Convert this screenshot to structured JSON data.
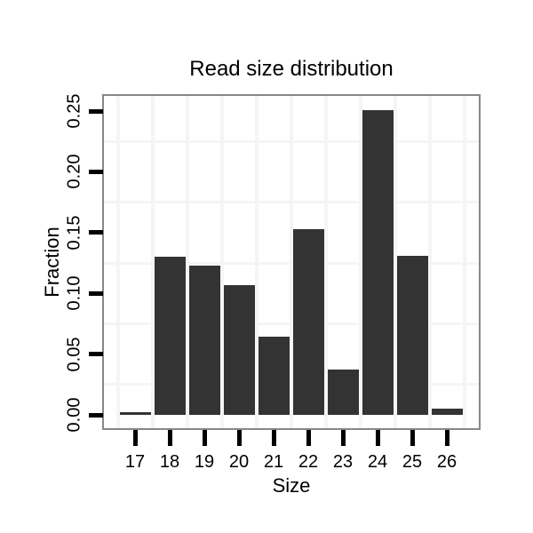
{
  "chart_data": {
    "type": "bar",
    "title": "Read size distribution",
    "xlabel": "Size",
    "ylabel": "Fraction",
    "categories": [
      "17",
      "18",
      "19",
      "20",
      "21",
      "22",
      "23",
      "24",
      "25",
      "26"
    ],
    "values": [
      0.002,
      0.13,
      0.123,
      0.107,
      0.064,
      0.153,
      0.037,
      0.251,
      0.131,
      0.005
    ],
    "ytick_values": [
      0.0,
      0.05,
      0.1,
      0.15,
      0.2,
      0.25
    ],
    "ytick_labels": [
      "0.00",
      "0.05",
      "0.10",
      "0.15",
      "0.20",
      "0.25"
    ],
    "ylim": [
      -0.011,
      0.262
    ],
    "grid": "on",
    "h_gridlines": [
      0.025,
      0.075,
      0.125,
      0.175,
      0.225
    ],
    "v_gridlines_between_categories": true,
    "legend": "none",
    "colors": {
      "bar_fill": "#333333",
      "panel_border": "#888888",
      "gridline": "#f5f5f5",
      "tick": "#000000",
      "text": "#000000",
      "background": "#ffffff"
    }
  }
}
